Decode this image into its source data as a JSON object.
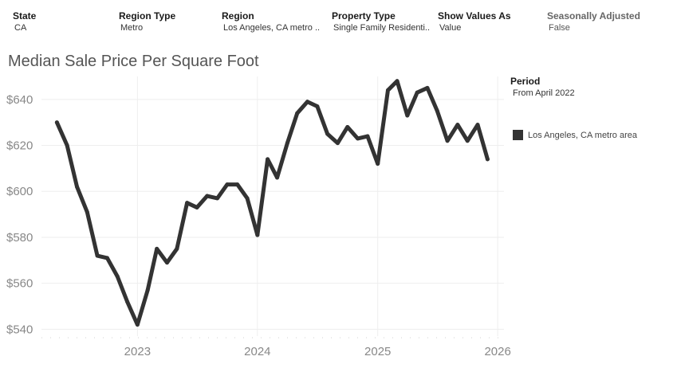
{
  "filters": [
    {
      "label": "State",
      "value": "CA"
    },
    {
      "label": "Region Type",
      "value": "Metro"
    },
    {
      "label": "Region",
      "value": "Los Angeles, CA metro .."
    },
    {
      "label": "Property Type",
      "value": "Single Family Residenti.."
    },
    {
      "label": "Show Values As",
      "value": "Value"
    },
    {
      "label": "Seasonally Adjusted",
      "value": "False"
    }
  ],
  "period": {
    "label": "Period",
    "value": "From April 2022"
  },
  "colors": {
    "line": "#333333",
    "grid": "#eeeeee",
    "axis_text": "#888888"
  },
  "chart_data": {
    "type": "line",
    "title": "Median Sale Price Per Square Foot",
    "xlabel": "",
    "ylabel": "",
    "ylim": [
      537,
      650
    ],
    "xlim": [
      "2022-03-15",
      "2026-01-20"
    ],
    "y_ticks": [
      540,
      560,
      580,
      600,
      620,
      640
    ],
    "y_tick_labels": [
      "$540",
      "$560",
      "$580",
      "$600",
      "$620",
      "$640"
    ],
    "x_ticks": [
      "2023-01-01",
      "2024-01-01",
      "2025-01-01",
      "2026-01-01"
    ],
    "x_tick_labels": [
      "2023",
      "2024",
      "2025",
      "2026"
    ],
    "grid": true,
    "legend_position": "right",
    "series": [
      {
        "name": "Los Angeles, CA metro area",
        "color": "#333333",
        "x": [
          "2022-05",
          "2022-06",
          "2022-07",
          "2022-08",
          "2022-09",
          "2022-10",
          "2022-11",
          "2022-12",
          "2023-01",
          "2023-02",
          "2023-03",
          "2023-04",
          "2023-05",
          "2023-06",
          "2023-07",
          "2023-08",
          "2023-09",
          "2023-10",
          "2023-11",
          "2023-12",
          "2024-01",
          "2024-02",
          "2024-03",
          "2024-04",
          "2024-05",
          "2024-06",
          "2024-07",
          "2024-08",
          "2024-09",
          "2024-10",
          "2024-11",
          "2024-12",
          "2025-01",
          "2025-02",
          "2025-03",
          "2025-04",
          "2025-05",
          "2025-06",
          "2025-07",
          "2025-08",
          "2025-09",
          "2025-10",
          "2025-11",
          "2025-12"
        ],
        "y": [
          630,
          620,
          602,
          591,
          572,
          571,
          563,
          552,
          542,
          557,
          575,
          569,
          575,
          595,
          593,
          598,
          597,
          603,
          603,
          597,
          581,
          614,
          606,
          621,
          634,
          639,
          637,
          625,
          621,
          628,
          623,
          624,
          612,
          644,
          648,
          633,
          643,
          645,
          635,
          622,
          629,
          622,
          629,
          614
        ]
      }
    ]
  }
}
